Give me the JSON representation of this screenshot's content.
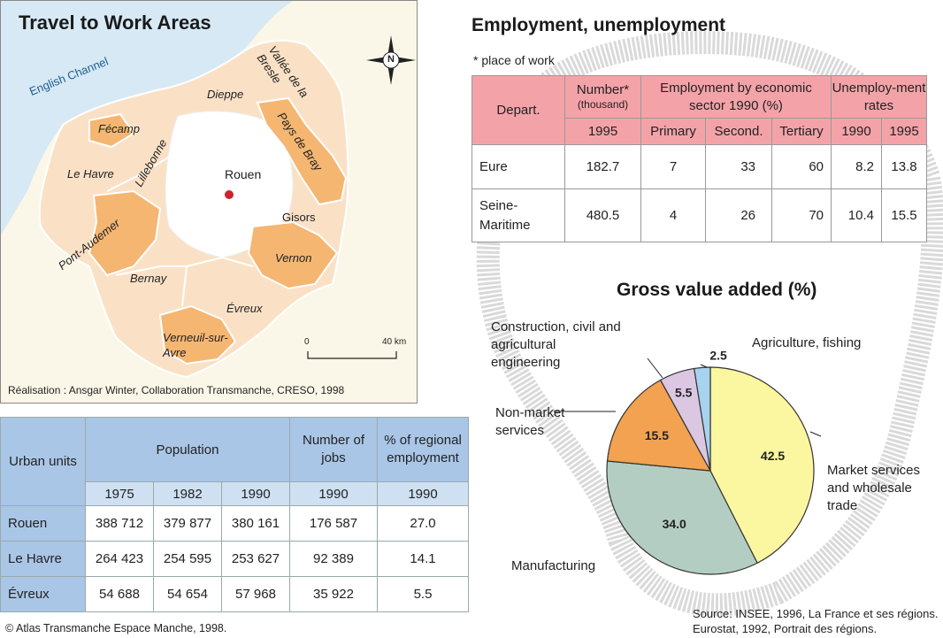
{
  "map": {
    "title": "Travel to Work Areas",
    "sea_label": "English Channel",
    "compass": "N",
    "scale": {
      "start": "0",
      "end": "40 km"
    },
    "areas": [
      "Fécamp",
      "Le Havre",
      "Lillebonne",
      "Dieppe",
      "Vallée de la Bresle",
      "Pays de Bray",
      "Rouen",
      "Gisors",
      "Pont-Audemer",
      "Vernon",
      "Bernay",
      "Évreux",
      "Verneuil-sur-Avre"
    ],
    "credit": "Réalisation : Ansgar Winter, Collaboration Transmanche, CRESO, 1998"
  },
  "employment": {
    "title": "Employment, unemployment",
    "note": "* place of work",
    "headers": {
      "depart": "Depart.",
      "number": "Number*",
      "number_unit": "(thousand)",
      "number_year": "1995",
      "sector": "Employment by economic sector 1990 (%)",
      "primary": "Primary",
      "second": "Second.",
      "tertiary": "Tertiary",
      "unemp": "Unemploy-ment rates",
      "u1990": "1990",
      "u1995": "1995"
    },
    "rows": [
      {
        "dept": "Eure",
        "number": "182.7",
        "primary": "7",
        "second": "33",
        "tertiary": "60",
        "u1990": "8.2",
        "u1995": "13.8"
      },
      {
        "dept": "Seine-Maritime",
        "number": "480.5",
        "primary": "4",
        "second": "26",
        "tertiary": "70",
        "u1990": "10.4",
        "u1995": "15.5"
      }
    ]
  },
  "population": {
    "headers": {
      "units": "Urban units",
      "population": "Population",
      "jobs": "Number of jobs",
      "regional": "% of regional employment",
      "y1975": "1975",
      "y1982": "1982",
      "y1990": "1990",
      "jobs_year": "1990",
      "reg_year": "1990"
    },
    "rows": [
      {
        "unit": "Rouen",
        "p1975": "388 712",
        "p1982": "379 877",
        "p1990": "380 161",
        "jobs": "176 587",
        "pct": "27.0"
      },
      {
        "unit": "Le Havre",
        "p1975": "264 423",
        "p1982": "254 595",
        "p1990": "253 627",
        "jobs": "92 389",
        "pct": "14.1"
      },
      {
        "unit": "Évreux",
        "p1975": "54 688",
        "p1982": "54 654",
        "p1990": "57 968",
        "jobs": "35 922",
        "pct": "5.5"
      }
    ]
  },
  "chart_data": {
    "type": "pie",
    "title": "Gross value added (%)",
    "slices": [
      {
        "label": "Market services and wholesale trade",
        "value": 42.5,
        "color": "#fbf6a0"
      },
      {
        "label": "Manufacturing",
        "value": 34.0,
        "color": "#b3cdc2"
      },
      {
        "label": "Non-market services",
        "value": 15.5,
        "color": "#f2a250"
      },
      {
        "label": "Construction, civil and agricultural engineering",
        "value": 5.5,
        "color": "#dbc7e2"
      },
      {
        "label": "Agriculture, fishing",
        "value": 2.5,
        "color": "#a7d3ef"
      }
    ]
  },
  "footer": "© Atlas Transmanche Espace Manche, 1998.",
  "source": "Source: INSEE, 1996, La France et ses régions. Eurostat, 1992, Portrait des régions."
}
